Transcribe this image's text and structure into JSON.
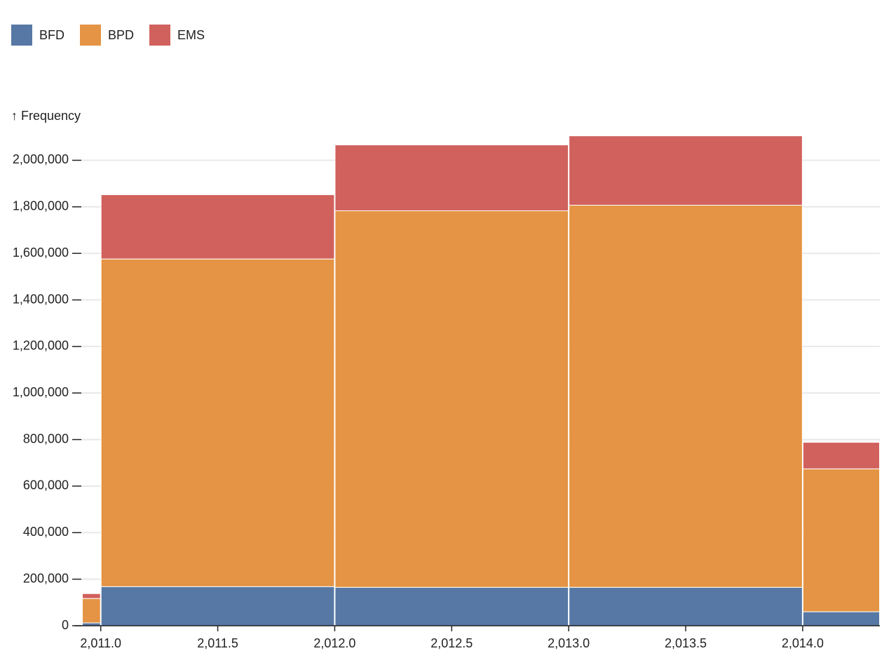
{
  "chart_data": {
    "type": "histogram",
    "y_label": "↑ Frequency",
    "bins": [
      2010.92,
      2011,
      2012,
      2013,
      2014,
      2014.33
    ],
    "series": [
      {
        "name": "BFD",
        "color": "#5778a4",
        "values": [
          12000,
          168000,
          165000,
          165000,
          60000
        ]
      },
      {
        "name": "BPD",
        "color": "#e49444",
        "values": [
          105000,
          1408000,
          1618000,
          1642000,
          614000
        ]
      },
      {
        "name": "EMS",
        "color": "#d1615d",
        "values": [
          21000,
          276000,
          283000,
          298000,
          114000
        ]
      }
    ],
    "stacked": true,
    "xlim": [
      2010.89,
      2014.33
    ],
    "xticks": [
      {
        "value": 2011,
        "label": "2,011.0"
      },
      {
        "value": 2011.5,
        "label": "2,011.5"
      },
      {
        "value": 2012,
        "label": "2,012.0"
      },
      {
        "value": 2012.5,
        "label": "2,012.5"
      },
      {
        "value": 2013,
        "label": "2,013.0"
      },
      {
        "value": 2013.5,
        "label": "2,013.5"
      },
      {
        "value": 2014,
        "label": "2,014.0"
      }
    ],
    "ylim": [
      0,
      2110000
    ],
    "yticks": [
      0,
      {
        "value": 200000,
        "label": "200,000"
      },
      {
        "value": 400000,
        "label": "400,000"
      },
      {
        "value": 600000,
        "label": "600,000"
      },
      {
        "value": 800000,
        "label": "800,000"
      },
      {
        "value": 1000000,
        "label": "1,000,000"
      },
      {
        "value": 1200000,
        "label": "1,200,000"
      },
      {
        "value": 1400000,
        "label": "1,400,000"
      },
      {
        "value": 1600000,
        "label": "1,600,000"
      },
      {
        "value": 1800000,
        "label": "1,800,000"
      },
      {
        "value": 2000000,
        "label": "2,000,000"
      }
    ],
    "grid": true
  }
}
